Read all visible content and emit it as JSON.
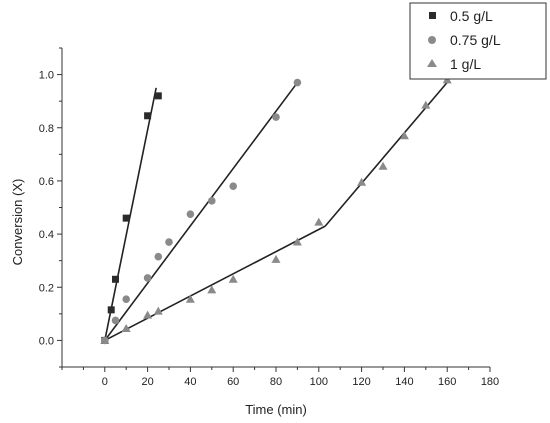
{
  "chart_data": {
    "type": "scatter",
    "xlabel": "Time (min)",
    "ylabel": "Conversion (X)",
    "xlim": [
      -20,
      180
    ],
    "ylim": [
      -0.1,
      1.1
    ],
    "xticks": [
      0,
      20,
      40,
      60,
      80,
      100,
      120,
      140,
      160,
      180
    ],
    "yticks": [
      0.0,
      0.2,
      0.4,
      0.6,
      0.8,
      1.0
    ],
    "xtick_labels": [
      "0",
      "20",
      "40",
      "60",
      "80",
      "100",
      "120",
      "140",
      "160",
      "180"
    ],
    "ytick_labels": [
      "0.0",
      "0.2",
      "0.4",
      "0.6",
      "0.8",
      "1.0"
    ],
    "legend_position": "top-right",
    "grid": false,
    "series": [
      {
        "name": "0.5 g/L",
        "marker": "square",
        "color": "#2b2b2b",
        "x": [
          0,
          3,
          5,
          10,
          20,
          25
        ],
        "y": [
          0.0,
          0.115,
          0.23,
          0.46,
          0.845,
          0.92
        ],
        "fit": [
          [
            0,
            0.0
          ],
          [
            24,
            0.95
          ]
        ]
      },
      {
        "name": "0.75 g/L",
        "marker": "circle",
        "color": "#8a8a8a",
        "x": [
          0,
          5,
          10,
          20,
          25,
          30,
          40,
          50,
          60,
          80,
          90
        ],
        "y": [
          0.0,
          0.075,
          0.155,
          0.235,
          0.315,
          0.37,
          0.475,
          0.525,
          0.58,
          0.84,
          0.97
        ],
        "fit": [
          [
            0,
            0.0
          ],
          [
            90,
            0.97
          ]
        ]
      },
      {
        "name": "1 g/L",
        "marker": "triangle",
        "color": "#8a8a8a",
        "x": [
          0,
          10,
          20,
          25,
          40,
          50,
          60,
          80,
          90,
          100,
          120,
          130,
          140,
          150,
          160
        ],
        "y": [
          0.0,
          0.045,
          0.095,
          0.11,
          0.155,
          0.19,
          0.23,
          0.305,
          0.37,
          0.445,
          0.595,
          0.655,
          0.77,
          0.885,
          0.98
        ],
        "fit": [
          [
            0,
            0.0
          ],
          [
            103,
            0.43
          ]
        ],
        "fit2": [
          [
            103,
            0.43
          ],
          [
            161,
            0.98
          ]
        ]
      }
    ]
  }
}
